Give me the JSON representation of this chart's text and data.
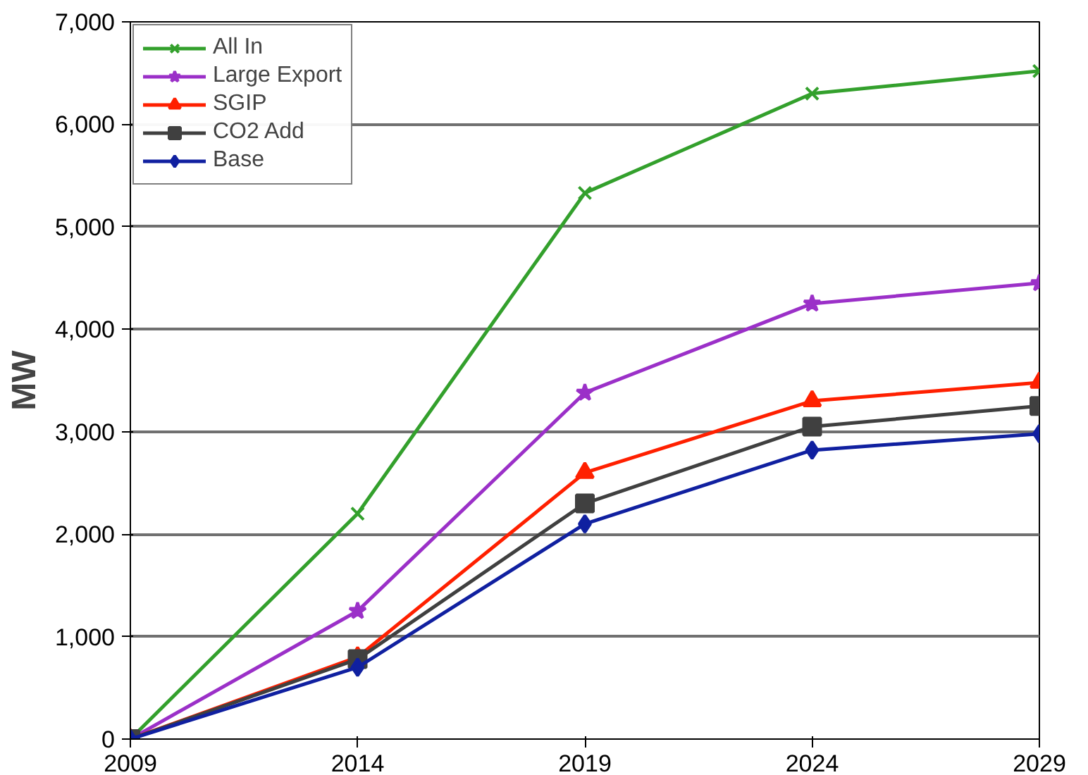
{
  "chart_data": {
    "type": "line",
    "ylabel": "MW",
    "x": [
      2009,
      2014,
      2019,
      2024,
      2029
    ],
    "xlim": [
      2009,
      2029
    ],
    "xticks": [
      2009,
      2014,
      2019,
      2024,
      2029
    ],
    "ylim": [
      0,
      7000
    ],
    "yticks": [
      0,
      {
        "value": 1000,
        "label": "1,000"
      },
      {
        "value": 2000,
        "label": "2,000"
      },
      {
        "value": 3000,
        "label": "3,000"
      },
      {
        "value": 4000,
        "label": "4,000"
      },
      {
        "value": 5000,
        "label": "5,000"
      },
      {
        "value": 6000,
        "label": "6,000"
      },
      {
        "value": 7000,
        "label": "7,000"
      }
    ],
    "grid": "y",
    "legend": "top left",
    "line_style": "solid",
    "series": [
      {
        "name": "All In",
        "color": "#33a02c",
        "marker": "cross",
        "values": [
          0,
          2200,
          5330,
          6300,
          6520
        ]
      },
      {
        "name": "Large Export",
        "color": "#9b30c8",
        "marker": "star",
        "values": [
          0,
          1250,
          3380,
          4250,
          4450
        ]
      },
      {
        "name": "SGIP",
        "color": "#ff2000",
        "marker": "triangle",
        "values": [
          0,
          800,
          2600,
          3300,
          3480
        ]
      },
      {
        "name": "CO2 Add",
        "color": "#404040",
        "marker": "square",
        "values": [
          0,
          780,
          2300,
          3050,
          3250
        ]
      },
      {
        "name": "Base",
        "color": "#1020a0",
        "marker": "diamond",
        "values": [
          0,
          700,
          2100,
          2820,
          2980
        ]
      }
    ]
  }
}
